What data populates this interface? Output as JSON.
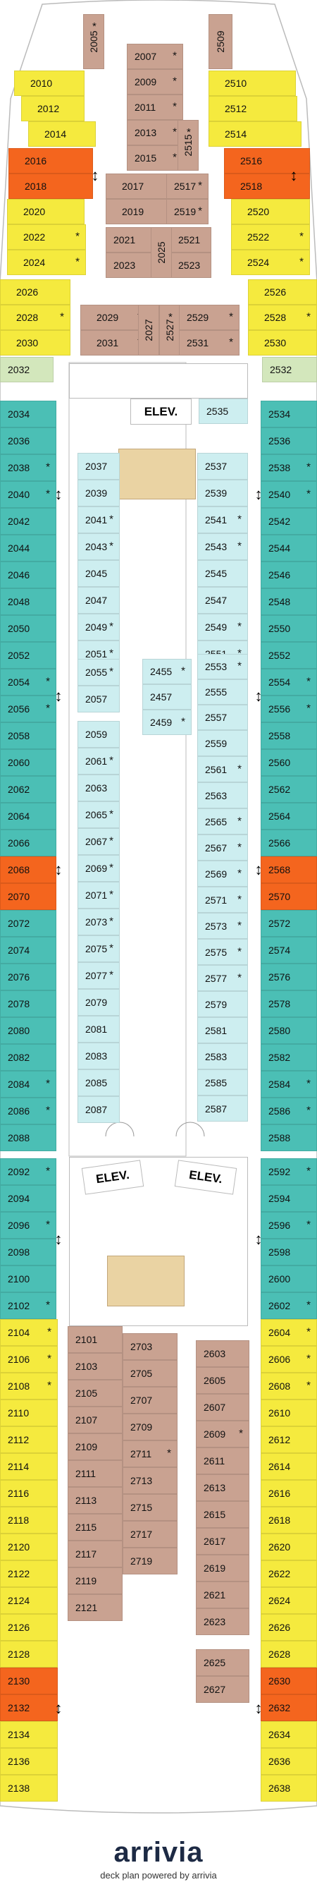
{
  "colors": {
    "yellow": "#f5ea3e",
    "teal": "#4bbfb5",
    "light_blue": "#cdeef0",
    "brown": "#c9a291",
    "red": "#f4651e",
    "green": "#d3e7bc",
    "beige": "#ead3a3"
  },
  "labels": {
    "elev_center": "ELEV.",
    "elev_left": "ELEV.",
    "elev_right": "ELEV."
  },
  "footer": {
    "brand": "arrivia",
    "tagline": "deck plan powered by arrivia"
  },
  "cabins": [
    {
      "n": "2005",
      "c": "brown",
      "s": true
    },
    {
      "n": "2509",
      "c": "brown",
      "s": false
    },
    {
      "n": "2007",
      "c": "brown",
      "s": true
    },
    {
      "n": "2009",
      "c": "brown",
      "s": true
    },
    {
      "n": "2011",
      "c": "brown",
      "s": true
    },
    {
      "n": "2013",
      "c": "brown",
      "s": true
    },
    {
      "n": "2015",
      "c": "brown",
      "s": true
    },
    {
      "n": "2515",
      "c": "brown",
      "s": true
    },
    {
      "n": "2017",
      "c": "brown",
      "s": true
    },
    {
      "n": "2517",
      "c": "brown",
      "s": true
    },
    {
      "n": "2019",
      "c": "brown",
      "s": true
    },
    {
      "n": "2519",
      "c": "brown",
      "s": true
    },
    {
      "n": "2021",
      "c": "brown",
      "s": false
    },
    {
      "n": "2521",
      "c": "brown",
      "s": false
    },
    {
      "n": "2023",
      "c": "brown",
      "s": false
    },
    {
      "n": "2523",
      "c": "brown",
      "s": false
    },
    {
      "n": "2025",
      "c": "brown",
      "s": false
    },
    {
      "n": "2010",
      "c": "yellow",
      "s": false
    },
    {
      "n": "2012",
      "c": "yellow",
      "s": false
    },
    {
      "n": "2014",
      "c": "yellow",
      "s": false
    },
    {
      "n": "2016",
      "c": "red",
      "s": false
    },
    {
      "n": "2018",
      "c": "red",
      "s": false
    },
    {
      "n": "2020",
      "c": "yellow",
      "s": false
    },
    {
      "n": "2022",
      "c": "yellow",
      "s": true
    },
    {
      "n": "2024",
      "c": "yellow",
      "s": true
    },
    {
      "n": "2026",
      "c": "yellow",
      "s": false
    },
    {
      "n": "2028",
      "c": "yellow",
      "s": true
    },
    {
      "n": "2030",
      "c": "yellow",
      "s": false
    },
    {
      "n": "2032",
      "c": "green",
      "s": false
    },
    {
      "n": "2510",
      "c": "yellow",
      "s": false
    },
    {
      "n": "2512",
      "c": "yellow",
      "s": false
    },
    {
      "n": "2514",
      "c": "yellow",
      "s": false
    },
    {
      "n": "2516",
      "c": "red",
      "s": false
    },
    {
      "n": "2518",
      "c": "red",
      "s": false
    },
    {
      "n": "2520",
      "c": "yellow",
      "s": false
    },
    {
      "n": "2522",
      "c": "yellow",
      "s": true
    },
    {
      "n": "2524",
      "c": "yellow",
      "s": true
    },
    {
      "n": "2526",
      "c": "yellow",
      "s": false
    },
    {
      "n": "2528",
      "c": "yellow",
      "s": true
    },
    {
      "n": "2530",
      "c": "yellow",
      "s": false
    },
    {
      "n": "2532",
      "c": "green",
      "s": false
    },
    {
      "n": "2029",
      "c": "brown",
      "s": true
    },
    {
      "n": "2031",
      "c": "brown",
      "s": true
    },
    {
      "n": "2027",
      "c": "brown",
      "s": false
    },
    {
      "n": "2527",
      "c": "brown",
      "s": true
    },
    {
      "n": "2529",
      "c": "brown",
      "s": true
    },
    {
      "n": "2531",
      "c": "brown",
      "s": true
    },
    {
      "n": "2535",
      "c": "light_blue",
      "s": false
    },
    {
      "n": "2034",
      "c": "teal",
      "s": false
    },
    {
      "n": "2036",
      "c": "teal",
      "s": false
    },
    {
      "n": "2038",
      "c": "teal",
      "s": true
    },
    {
      "n": "2040",
      "c": "teal",
      "s": true
    },
    {
      "n": "2042",
      "c": "teal",
      "s": false
    },
    {
      "n": "2044",
      "c": "teal",
      "s": false
    },
    {
      "n": "2046",
      "c": "teal",
      "s": false
    },
    {
      "n": "2048",
      "c": "teal",
      "s": false
    },
    {
      "n": "2050",
      "c": "teal",
      "s": false
    },
    {
      "n": "2052",
      "c": "teal",
      "s": false
    },
    {
      "n": "2054",
      "c": "teal",
      "s": true
    },
    {
      "n": "2056",
      "c": "teal",
      "s": true
    },
    {
      "n": "2058",
      "c": "teal",
      "s": false
    },
    {
      "n": "2060",
      "c": "teal",
      "s": false
    },
    {
      "n": "2062",
      "c": "teal",
      "s": false
    },
    {
      "n": "2064",
      "c": "teal",
      "s": false
    },
    {
      "n": "2066",
      "c": "teal",
      "s": false
    },
    {
      "n": "2068",
      "c": "red",
      "s": false
    },
    {
      "n": "2070",
      "c": "red",
      "s": false
    },
    {
      "n": "2072",
      "c": "teal",
      "s": false
    },
    {
      "n": "2074",
      "c": "teal",
      "s": false
    },
    {
      "n": "2076",
      "c": "teal",
      "s": false
    },
    {
      "n": "2078",
      "c": "teal",
      "s": false
    },
    {
      "n": "2080",
      "c": "teal",
      "s": false
    },
    {
      "n": "2082",
      "c": "teal",
      "s": false
    },
    {
      "n": "2084",
      "c": "teal",
      "s": true
    },
    {
      "n": "2086",
      "c": "teal",
      "s": true
    },
    {
      "n": "2088",
      "c": "teal",
      "s": false
    },
    {
      "n": "2534",
      "c": "teal",
      "s": false
    },
    {
      "n": "2536",
      "c": "teal",
      "s": false
    },
    {
      "n": "2538",
      "c": "teal",
      "s": true
    },
    {
      "n": "2540",
      "c": "teal",
      "s": true
    },
    {
      "n": "2542",
      "c": "teal",
      "s": false
    },
    {
      "n": "2544",
      "c": "teal",
      "s": false
    },
    {
      "n": "2546",
      "c": "teal",
      "s": false
    },
    {
      "n": "2548",
      "c": "teal",
      "s": false
    },
    {
      "n": "2550",
      "c": "teal",
      "s": false
    },
    {
      "n": "2552",
      "c": "teal",
      "s": false
    },
    {
      "n": "2554",
      "c": "teal",
      "s": true
    },
    {
      "n": "2556",
      "c": "teal",
      "s": true
    },
    {
      "n": "2558",
      "c": "teal",
      "s": false
    },
    {
      "n": "2560",
      "c": "teal",
      "s": false
    },
    {
      "n": "2562",
      "c": "teal",
      "s": false
    },
    {
      "n": "2564",
      "c": "teal",
      "s": false
    },
    {
      "n": "2566",
      "c": "teal",
      "s": false
    },
    {
      "n": "2568",
      "c": "red",
      "s": false
    },
    {
      "n": "2570",
      "c": "red",
      "s": false
    },
    {
      "n": "2572",
      "c": "teal",
      "s": false
    },
    {
      "n": "2574",
      "c": "teal",
      "s": false
    },
    {
      "n": "2576",
      "c": "teal",
      "s": false
    },
    {
      "n": "2578",
      "c": "teal",
      "s": false
    },
    {
      "n": "2580",
      "c": "teal",
      "s": false
    },
    {
      "n": "2582",
      "c": "teal",
      "s": false
    },
    {
      "n": "2584",
      "c": "teal",
      "s": true
    },
    {
      "n": "2586",
      "c": "teal",
      "s": true
    },
    {
      "n": "2588",
      "c": "teal",
      "s": false
    },
    {
      "n": "2037",
      "c": "light_blue",
      "s": false
    },
    {
      "n": "2039",
      "c": "light_blue",
      "s": false
    },
    {
      "n": "2041",
      "c": "light_blue",
      "s": true
    },
    {
      "n": "2043",
      "c": "light_blue",
      "s": true
    },
    {
      "n": "2045",
      "c": "light_blue",
      "s": false
    },
    {
      "n": "2047",
      "c": "light_blue",
      "s": false
    },
    {
      "n": "2049",
      "c": "light_blue",
      "s": true
    },
    {
      "n": "2051",
      "c": "light_blue",
      "s": true
    },
    {
      "n": "2055",
      "c": "light_blue",
      "s": true
    },
    {
      "n": "2057",
      "c": "light_blue",
      "s": false
    },
    {
      "n": "2059",
      "c": "light_blue",
      "s": false
    },
    {
      "n": "2061",
      "c": "light_blue",
      "s": true
    },
    {
      "n": "2063",
      "c": "light_blue",
      "s": false
    },
    {
      "n": "2065",
      "c": "light_blue",
      "s": true
    },
    {
      "n": "2067",
      "c": "light_blue",
      "s": true
    },
    {
      "n": "2069",
      "c": "light_blue",
      "s": true
    },
    {
      "n": "2071",
      "c": "light_blue",
      "s": true
    },
    {
      "n": "2073",
      "c": "light_blue",
      "s": true
    },
    {
      "n": "2075",
      "c": "light_blue",
      "s": true
    },
    {
      "n": "2077",
      "c": "light_blue",
      "s": true
    },
    {
      "n": "2079",
      "c": "light_blue",
      "s": false
    },
    {
      "n": "2081",
      "c": "light_blue",
      "s": false
    },
    {
      "n": "2083",
      "c": "light_blue",
      "s": false
    },
    {
      "n": "2085",
      "c": "light_blue",
      "s": false
    },
    {
      "n": "2087",
      "c": "light_blue",
      "s": false
    },
    {
      "n": "2455",
      "c": "light_blue",
      "s": true
    },
    {
      "n": "2457",
      "c": "light_blue",
      "s": false
    },
    {
      "n": "2459",
      "c": "light_blue",
      "s": true
    },
    {
      "n": "2537",
      "c": "light_blue",
      "s": false
    },
    {
      "n": "2539",
      "c": "light_blue",
      "s": false
    },
    {
      "n": "2541",
      "c": "light_blue",
      "s": true
    },
    {
      "n": "2543",
      "c": "light_blue",
      "s": true
    },
    {
      "n": "2545",
      "c": "light_blue",
      "s": false
    },
    {
      "n": "2547",
      "c": "light_blue",
      "s": false
    },
    {
      "n": "2549",
      "c": "light_blue",
      "s": true
    },
    {
      "n": "2551",
      "c": "light_blue",
      "s": true
    },
    {
      "n": "2553",
      "c": "light_blue",
      "s": true
    },
    {
      "n": "2555",
      "c": "light_blue",
      "s": false
    },
    {
      "n": "2557",
      "c": "light_blue",
      "s": false
    },
    {
      "n": "2559",
      "c": "light_blue",
      "s": false
    },
    {
      "n": "2561",
      "c": "light_blue",
      "s": true
    },
    {
      "n": "2563",
      "c": "light_blue",
      "s": false
    },
    {
      "n": "2565",
      "c": "light_blue",
      "s": true
    },
    {
      "n": "2567",
      "c": "light_blue",
      "s": true
    },
    {
      "n": "2569",
      "c": "light_blue",
      "s": true
    },
    {
      "n": "2571",
      "c": "light_blue",
      "s": true
    },
    {
      "n": "2573",
      "c": "light_blue",
      "s": true
    },
    {
      "n": "2575",
      "c": "light_blue",
      "s": true
    },
    {
      "n": "2577",
      "c": "light_blue",
      "s": true
    },
    {
      "n": "2579",
      "c": "light_blue",
      "s": false
    },
    {
      "n": "2581",
      "c": "light_blue",
      "s": false
    },
    {
      "n": "2583",
      "c": "light_blue",
      "s": false
    },
    {
      "n": "2585",
      "c": "light_blue",
      "s": false
    },
    {
      "n": "2587",
      "c": "light_blue",
      "s": false
    },
    {
      "n": "2092",
      "c": "teal",
      "s": true
    },
    {
      "n": "2094",
      "c": "teal",
      "s": false
    },
    {
      "n": "2096",
      "c": "teal",
      "s": true
    },
    {
      "n": "2098",
      "c": "teal",
      "s": false
    },
    {
      "n": "2100",
      "c": "teal",
      "s": false
    },
    {
      "n": "2102",
      "c": "teal",
      "s": true
    },
    {
      "n": "2592",
      "c": "teal",
      "s": true
    },
    {
      "n": "2594",
      "c": "teal",
      "s": false
    },
    {
      "n": "2596",
      "c": "teal",
      "s": true
    },
    {
      "n": "2598",
      "c": "teal",
      "s": false
    },
    {
      "n": "2600",
      "c": "teal",
      "s": false
    },
    {
      "n": "2602",
      "c": "teal",
      "s": true
    },
    {
      "n": "2104",
      "c": "yellow",
      "s": true
    },
    {
      "n": "2106",
      "c": "yellow",
      "s": true
    },
    {
      "n": "2108",
      "c": "yellow",
      "s": true
    },
    {
      "n": "2110",
      "c": "yellow",
      "s": false
    },
    {
      "n": "2112",
      "c": "yellow",
      "s": false
    },
    {
      "n": "2114",
      "c": "yellow",
      "s": false
    },
    {
      "n": "2116",
      "c": "yellow",
      "s": false
    },
    {
      "n": "2118",
      "c": "yellow",
      "s": false
    },
    {
      "n": "2120",
      "c": "yellow",
      "s": false
    },
    {
      "n": "2122",
      "c": "yellow",
      "s": false
    },
    {
      "n": "2124",
      "c": "yellow",
      "s": false
    },
    {
      "n": "2126",
      "c": "yellow",
      "s": false
    },
    {
      "n": "2128",
      "c": "yellow",
      "s": false
    },
    {
      "n": "2130",
      "c": "red",
      "s": false
    },
    {
      "n": "2132",
      "c": "red",
      "s": false
    },
    {
      "n": "2134",
      "c": "yellow",
      "s": false
    },
    {
      "n": "2136",
      "c": "yellow",
      "s": false
    },
    {
      "n": "2138",
      "c": "yellow",
      "s": false
    },
    {
      "n": "2604",
      "c": "yellow",
      "s": true
    },
    {
      "n": "2606",
      "c": "yellow",
      "s": true
    },
    {
      "n": "2608",
      "c": "yellow",
      "s": true
    },
    {
      "n": "2610",
      "c": "yellow",
      "s": false
    },
    {
      "n": "2612",
      "c": "yellow",
      "s": false
    },
    {
      "n": "2614",
      "c": "yellow",
      "s": false
    },
    {
      "n": "2616",
      "c": "yellow",
      "s": false
    },
    {
      "n": "2618",
      "c": "yellow",
      "s": false
    },
    {
      "n": "2620",
      "c": "yellow",
      "s": false
    },
    {
      "n": "2622",
      "c": "yellow",
      "s": false
    },
    {
      "n": "2624",
      "c": "yellow",
      "s": false
    },
    {
      "n": "2626",
      "c": "yellow",
      "s": false
    },
    {
      "n": "2628",
      "c": "yellow",
      "s": false
    },
    {
      "n": "2630",
      "c": "red",
      "s": false
    },
    {
      "n": "2632",
      "c": "red",
      "s": false
    },
    {
      "n": "2634",
      "c": "yellow",
      "s": false
    },
    {
      "n": "2636",
      "c": "yellow",
      "s": false
    },
    {
      "n": "2638",
      "c": "yellow",
      "s": false
    },
    {
      "n": "2101",
      "c": "brown",
      "s": false
    },
    {
      "n": "2103",
      "c": "brown",
      "s": false
    },
    {
      "n": "2105",
      "c": "brown",
      "s": false
    },
    {
      "n": "2107",
      "c": "brown",
      "s": false
    },
    {
      "n": "2109",
      "c": "brown",
      "s": false
    },
    {
      "n": "2111",
      "c": "brown",
      "s": false
    },
    {
      "n": "2113",
      "c": "brown",
      "s": false
    },
    {
      "n": "2115",
      "c": "brown",
      "s": false
    },
    {
      "n": "2117",
      "c": "brown",
      "s": false
    },
    {
      "n": "2119",
      "c": "brown",
      "s": false
    },
    {
      "n": "2121",
      "c": "brown",
      "s": false
    },
    {
      "n": "2703",
      "c": "brown",
      "s": false
    },
    {
      "n": "2705",
      "c": "brown",
      "s": false
    },
    {
      "n": "2707",
      "c": "brown",
      "s": false
    },
    {
      "n": "2709",
      "c": "brown",
      "s": false
    },
    {
      "n": "2711",
      "c": "brown",
      "s": true
    },
    {
      "n": "2713",
      "c": "brown",
      "s": false
    },
    {
      "n": "2715",
      "c": "brown",
      "s": false
    },
    {
      "n": "2717",
      "c": "brown",
      "s": false
    },
    {
      "n": "2719",
      "c": "brown",
      "s": false
    },
    {
      "n": "2603",
      "c": "brown",
      "s": false
    },
    {
      "n": "2605",
      "c": "brown",
      "s": false
    },
    {
      "n": "2607",
      "c": "brown",
      "s": false
    },
    {
      "n": "2609",
      "c": "brown",
      "s": true
    },
    {
      "n": "2611",
      "c": "brown",
      "s": false
    },
    {
      "n": "2613",
      "c": "brown",
      "s": false
    },
    {
      "n": "2615",
      "c": "brown",
      "s": false
    },
    {
      "n": "2617",
      "c": "brown",
      "s": false
    },
    {
      "n": "2619",
      "c": "brown",
      "s": false
    },
    {
      "n": "2621",
      "c": "brown",
      "s": false
    },
    {
      "n": "2623",
      "c": "brown",
      "s": false
    },
    {
      "n": "2625",
      "c": "brown",
      "s": false
    },
    {
      "n": "2627",
      "c": "brown",
      "s": false
    }
  ]
}
